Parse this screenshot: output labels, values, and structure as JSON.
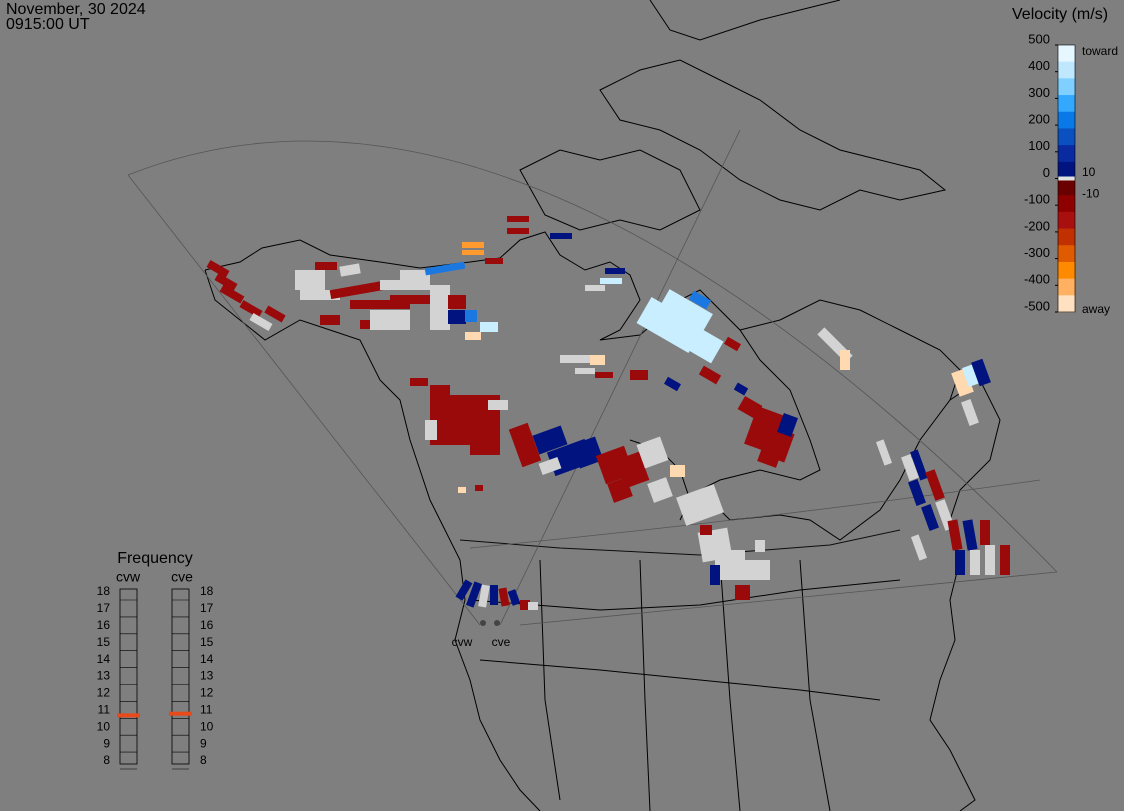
{
  "header": {
    "date": "November, 30 2024",
    "time": "0915:00 UT"
  },
  "velocity_scale": {
    "title": "Velocity (m/s)",
    "ticks": [
      500,
      400,
      300,
      200,
      100,
      0,
      -100,
      -200,
      -300,
      -400,
      -500
    ],
    "inner_ticks": [
      10,
      -10
    ],
    "toward": "toward",
    "away": "away"
  },
  "frequency": {
    "title": "Frequency",
    "ticks": [
      8,
      9,
      10,
      11,
      12,
      13,
      14,
      15,
      16,
      17,
      18
    ],
    "radars": [
      {
        "name": "cvw",
        "value": 10.7
      },
      {
        "name": "cve",
        "value": 10.8
      }
    ]
  },
  "sites": [
    {
      "label": "cvw"
    },
    {
      "label": "cve"
    }
  ]
}
